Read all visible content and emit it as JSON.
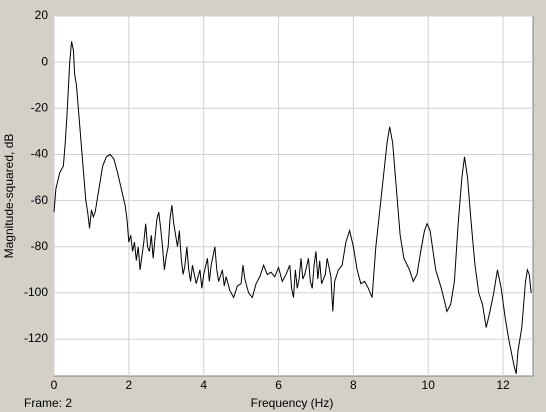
{
  "chart_data": {
    "type": "line",
    "frame_label": "Frame: 2",
    "xlabel": "Frequency (Hz)",
    "ylabel": "Magnitude-squared, dB",
    "color": "#000000",
    "grid": true,
    "xlim": [
      0,
      12.8
    ],
    "ylim": [
      -136,
      20
    ],
    "xticks": [
      0,
      2,
      4,
      6,
      8,
      10,
      12
    ],
    "yticks": [
      -120,
      -100,
      -80,
      -60,
      -40,
      -20,
      0,
      20
    ],
    "x": [
      0,
      0.05,
      0.15,
      0.25,
      0.3,
      0.35,
      0.42,
      0.47,
      0.52,
      0.55,
      0.6,
      0.65,
      0.7,
      0.75,
      0.8,
      0.85,
      0.9,
      0.95,
      1.0,
      1.05,
      1.1,
      1.2,
      1.3,
      1.4,
      1.5,
      1.6,
      1.7,
      1.8,
      1.9,
      1.95,
      2.0,
      2.05,
      2.1,
      2.15,
      2.2,
      2.25,
      2.3,
      2.35,
      2.4,
      2.45,
      2.5,
      2.55,
      2.6,
      2.65,
      2.7,
      2.75,
      2.8,
      2.85,
      2.9,
      2.95,
      3.0,
      3.05,
      3.1,
      3.15,
      3.2,
      3.25,
      3.3,
      3.35,
      3.4,
      3.45,
      3.5,
      3.55,
      3.6,
      3.65,
      3.7,
      3.8,
      3.9,
      3.95,
      4.0,
      4.1,
      4.15,
      4.2,
      4.3,
      4.35,
      4.4,
      4.5,
      4.55,
      4.6,
      4.7,
      4.8,
      4.9,
      5.0,
      5.05,
      5.1,
      5.2,
      5.3,
      5.4,
      5.5,
      5.6,
      5.7,
      5.8,
      5.9,
      6.0,
      6.1,
      6.2,
      6.3,
      6.35,
      6.4,
      6.45,
      6.5,
      6.55,
      6.6,
      6.65,
      6.7,
      6.8,
      6.85,
      6.9,
      6.95,
      7.0,
      7.05,
      7.1,
      7.15,
      7.25,
      7.3,
      7.4,
      7.45,
      7.5,
      7.6,
      7.7,
      7.8,
      7.9,
      8.0,
      8.1,
      8.2,
      8.3,
      8.4,
      8.5,
      8.6,
      8.7,
      8.8,
      8.9,
      8.97,
      9.05,
      9.15,
      9.25,
      9.35,
      9.5,
      9.6,
      9.7,
      9.8,
      9.9,
      9.97,
      10.05,
      10.2,
      10.35,
      10.5,
      10.6,
      10.7,
      10.8,
      10.9,
      10.97,
      11.05,
      11.15,
      11.25,
      11.35,
      11.45,
      11.55,
      11.65,
      11.75,
      11.85,
      11.95,
      12.05,
      12.15,
      12.25,
      12.3,
      12.35,
      12.4,
      12.5,
      12.6,
      12.65,
      12.7,
      12.75
    ],
    "values": [
      -65,
      -55,
      -48,
      -45,
      -35,
      -22,
      0,
      9,
      5,
      -5,
      -10,
      -20,
      -30,
      -40,
      -50,
      -60,
      -65,
      -72,
      -64,
      -67,
      -65,
      -55,
      -45,
      -41,
      -40,
      -42,
      -48,
      -55,
      -62,
      -68,
      -78,
      -75,
      -82,
      -78,
      -86,
      -80,
      -90,
      -84,
      -78,
      -70,
      -80,
      -82,
      -75,
      -85,
      -76,
      -68,
      -65,
      -72,
      -80,
      -90,
      -84,
      -80,
      -68,
      -62,
      -70,
      -75,
      -80,
      -73,
      -85,
      -92,
      -88,
      -80,
      -90,
      -95,
      -88,
      -96,
      -90,
      -98,
      -92,
      -85,
      -95,
      -88,
      -80,
      -90,
      -95,
      -90,
      -97,
      -93,
      -99,
      -102,
      -97,
      -96,
      -88,
      -94,
      -100,
      -102,
      -96,
      -93,
      -88,
      -92,
      -91,
      -93,
      -89,
      -95,
      -92,
      -88,
      -98,
      -102,
      -90,
      -98,
      -94,
      -85,
      -94,
      -92,
      -85,
      -95,
      -98,
      -88,
      -82,
      -94,
      -86,
      -96,
      -92,
      -85,
      -93,
      -108,
      -95,
      -90,
      -88,
      -78,
      -73,
      -80,
      -90,
      -96,
      -95,
      -98,
      -102,
      -80,
      -65,
      -50,
      -35,
      -28,
      -35,
      -55,
      -75,
      -85,
      -90,
      -95,
      -92,
      -82,
      -73,
      -70,
      -73,
      -90,
      -98,
      -108,
      -105,
      -95,
      -70,
      -50,
      -41,
      -50,
      -70,
      -88,
      -100,
      -105,
      -115,
      -108,
      -100,
      -90,
      -98,
      -110,
      -120,
      -128,
      -132,
      -135,
      -125,
      -115,
      -95,
      -90,
      -92,
      -100
    ]
  }
}
